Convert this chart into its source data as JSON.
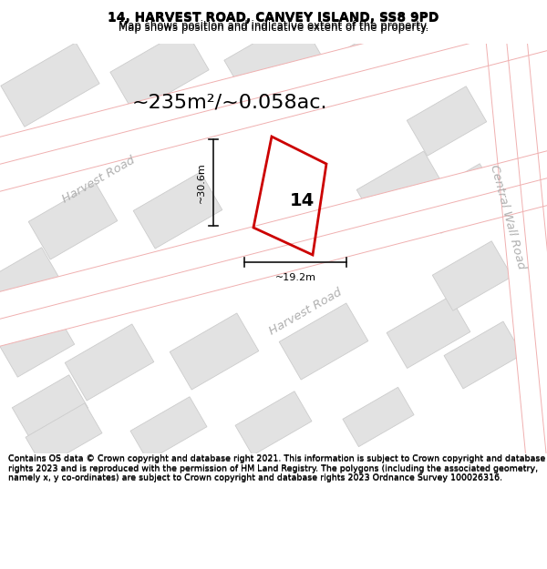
{
  "title": "14, HARVEST ROAD, CANVEY ISLAND, SS8 9PD",
  "subtitle": "Map shows position and indicative extent of the property.",
  "area_label": "~235m²/~0.058ac.",
  "property_number": "14",
  "dim_width": "~19.2m",
  "dim_height": "~30.6m",
  "road_label_harvest_upper": "Harvest Road",
  "road_label_harvest_lower": "Harvest Road",
  "road_label_central": "Central Wall Road",
  "footer": "Contains OS data © Crown copyright and database right 2021. This information is subject to Crown copyright and database rights 2023 and is reproduced with the permission of HM Land Registry. The polygons (including the associated geometry, namely x, y co-ordinates) are subject to Crown copyright and database rights 2023 Ordnance Survey 100026316.",
  "bg_color": "#ffffff",
  "map_bg": "#f0f0f0",
  "block_fc": "#e2e2e2",
  "block_ec": "#cccccc",
  "road_bg": "#ffffff",
  "road_line_color": "#f0b0b0",
  "road_text_color": "#b0b0b0",
  "property_ec": "#cc0000",
  "dim_color": "#111111",
  "title_fontsize": 10,
  "subtitle_fontsize": 8.5,
  "area_fontsize": 16,
  "prop_num_fontsize": 14,
  "dim_fontsize": 8,
  "road_label_fontsize": 9.5,
  "footer_fontsize": 6.8
}
